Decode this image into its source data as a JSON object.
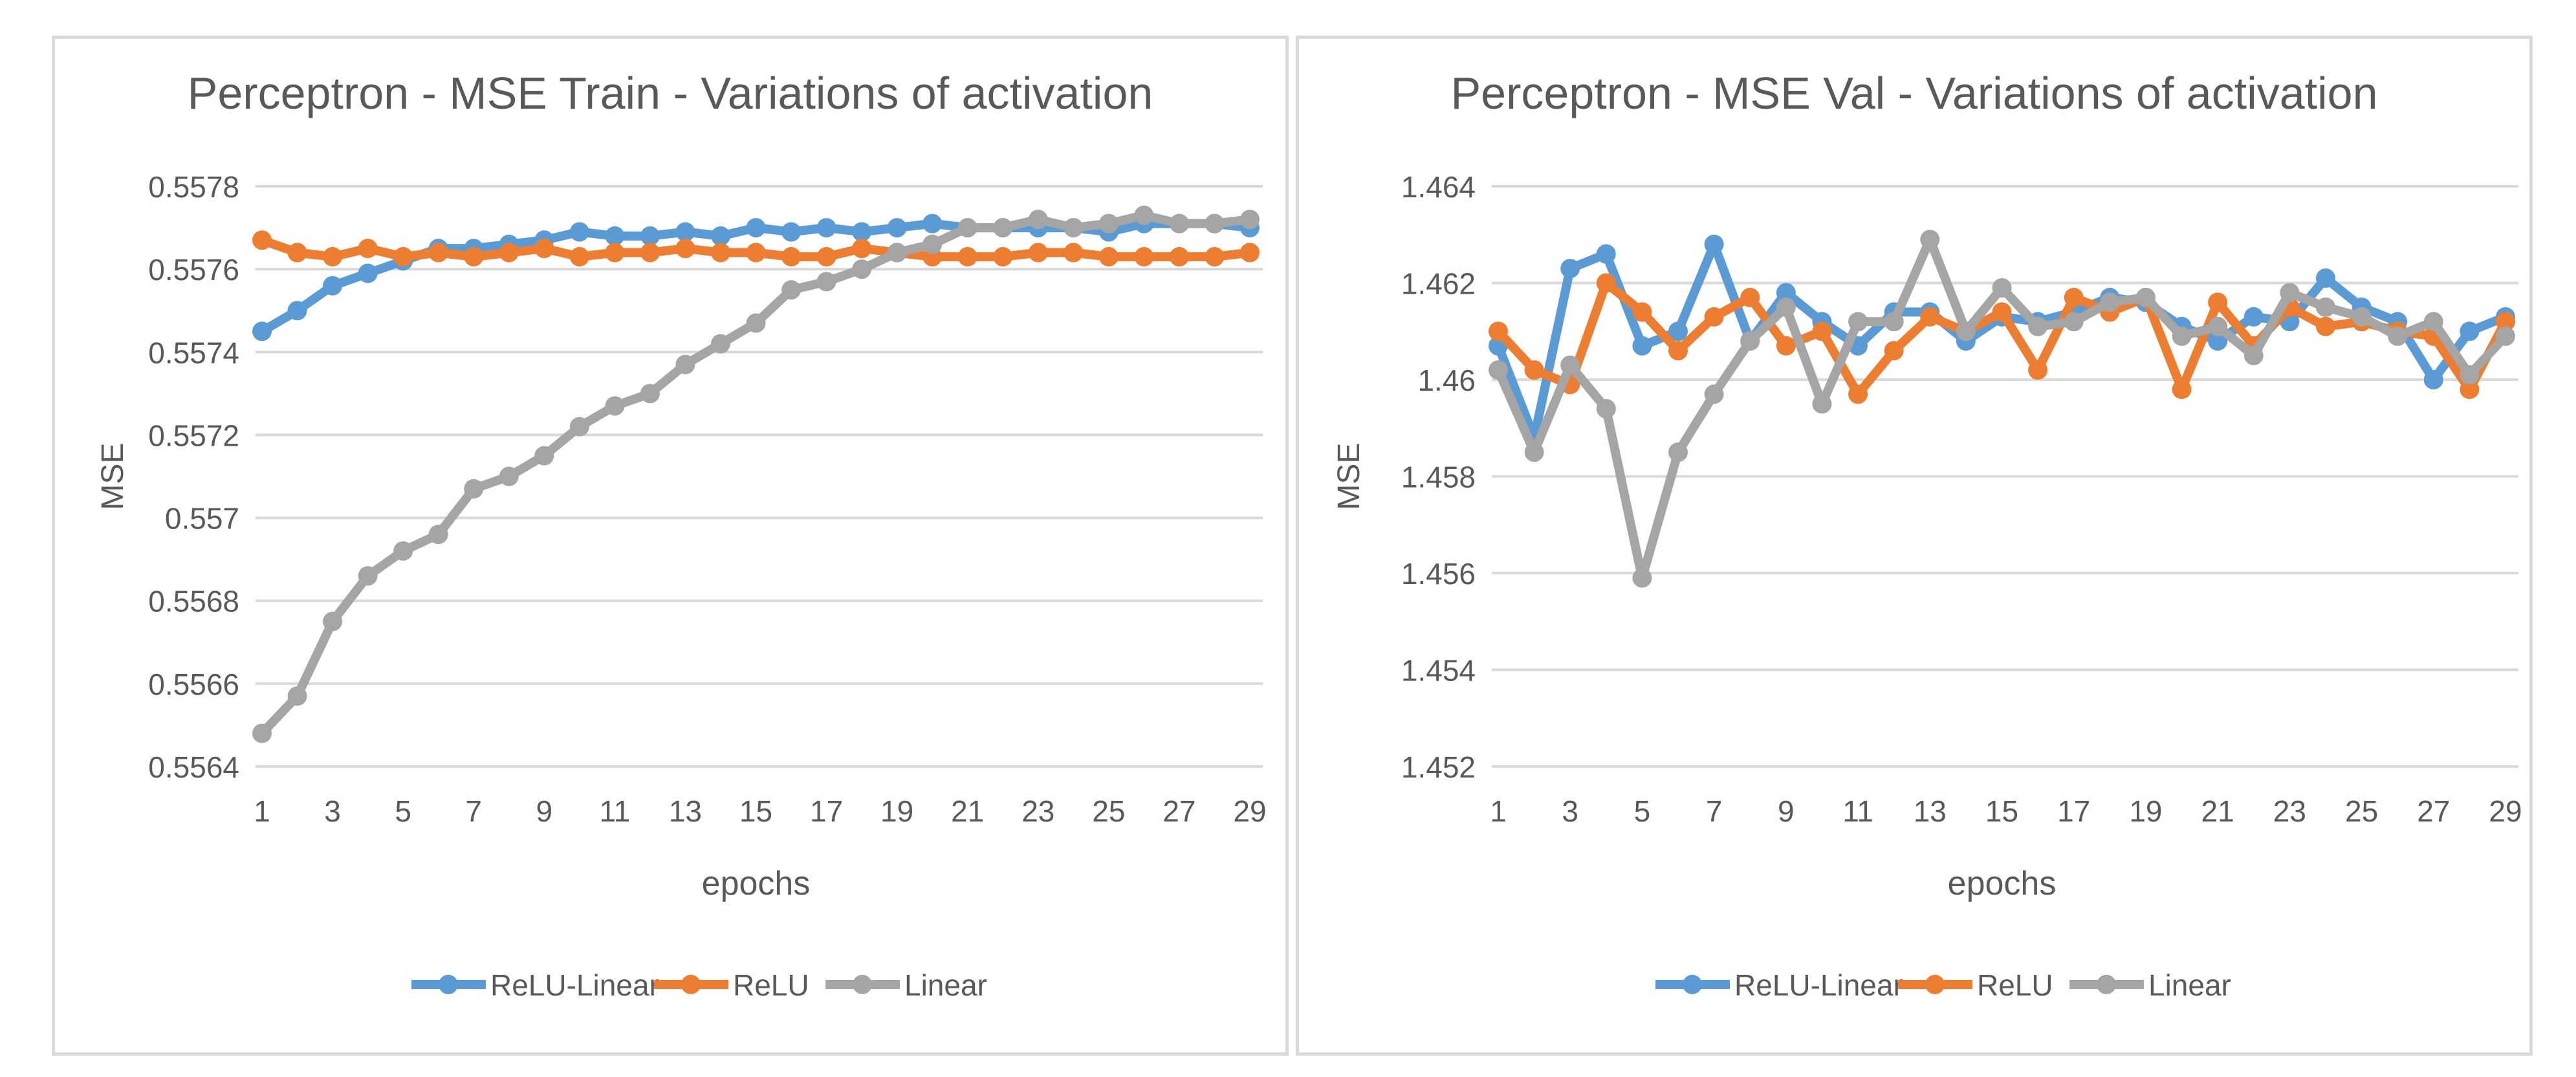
{
  "chart_data": [
    {
      "type": "line",
      "title": "Perceptron - MSE Train - Variations of activation",
      "xlabel": "epochs",
      "ylabel": "MSE",
      "ylim": [
        0.5564,
        0.5578
      ],
      "yticks": [
        "0.5564",
        "0.5566",
        "0.5568",
        "0.557",
        "0.5572",
        "0.5574",
        "0.5576",
        "0.5578"
      ],
      "ytick_values": [
        0.5564,
        0.5566,
        0.5568,
        0.557,
        0.5572,
        0.5574,
        0.5576,
        0.5578
      ],
      "x": [
        1,
        2,
        3,
        4,
        5,
        6,
        7,
        8,
        9,
        10,
        11,
        12,
        13,
        14,
        15,
        16,
        17,
        18,
        19,
        20,
        21,
        22,
        23,
        24,
        25,
        26,
        27,
        28,
        29
      ],
      "xtick_labels": [
        "1",
        "3",
        "5",
        "7",
        "9",
        "11",
        "13",
        "15",
        "17",
        "19",
        "21",
        "23",
        "25",
        "27",
        "29"
      ],
      "legend_position": "bottom",
      "series": [
        {
          "name": "ReLU-Linear",
          "color": "#5b9bd5",
          "values": [
            0.55745,
            0.5575,
            0.55756,
            0.55759,
            0.55762,
            0.55765,
            0.55765,
            0.55766,
            0.55767,
            0.55769,
            0.55768,
            0.55768,
            0.55769,
            0.55768,
            0.5577,
            0.55769,
            0.5577,
            0.55769,
            0.5577,
            0.55771,
            0.5577,
            0.5577,
            0.5577,
            0.5577,
            0.55769,
            0.55771,
            0.55771,
            0.55771,
            0.5577
          ]
        },
        {
          "name": "ReLU",
          "color": "#ed7d31",
          "values": [
            0.55767,
            0.55764,
            0.55763,
            0.55765,
            0.55763,
            0.55764,
            0.55763,
            0.55764,
            0.55765,
            0.55763,
            0.55764,
            0.55764,
            0.55765,
            0.55764,
            0.55764,
            0.55763,
            0.55763,
            0.55765,
            0.55764,
            0.55763,
            0.55763,
            0.55763,
            0.55764,
            0.55764,
            0.55763,
            0.55763,
            0.55763,
            0.55763,
            0.55764
          ]
        },
        {
          "name": "Linear",
          "color": "#a5a5a5",
          "values": [
            0.55648,
            0.55657,
            0.55675,
            0.55686,
            0.55692,
            0.55696,
            0.55707,
            0.5571,
            0.55715,
            0.55722,
            0.55727,
            0.5573,
            0.55737,
            0.55742,
            0.55747,
            0.55755,
            0.55757,
            0.5576,
            0.55764,
            0.55766,
            0.5577,
            0.5577,
            0.55772,
            0.5577,
            0.55771,
            0.55773,
            0.55771,
            0.55771,
            0.55772
          ]
        }
      ]
    },
    {
      "type": "line",
      "title": "Perceptron - MSE Val - Variations of activation",
      "xlabel": "epochs",
      "ylabel": "MSE",
      "ylim": [
        1.452,
        1.464
      ],
      "yticks": [
        "1.452",
        "1.454",
        "1.456",
        "1.458",
        "1.46",
        "1.462",
        "1.464"
      ],
      "ytick_values": [
        1.452,
        1.454,
        1.456,
        1.458,
        1.46,
        1.462,
        1.464
      ],
      "x": [
        1,
        2,
        3,
        4,
        5,
        6,
        7,
        8,
        9,
        10,
        11,
        12,
        13,
        14,
        15,
        16,
        17,
        18,
        19,
        20,
        21,
        22,
        23,
        24,
        25,
        26,
        27,
        28,
        29
      ],
      "xtick_labels": [
        "1",
        "3",
        "5",
        "7",
        "9",
        "11",
        "13",
        "15",
        "17",
        "19",
        "21",
        "23",
        "25",
        "27",
        "29"
      ],
      "legend_position": "bottom",
      "series": [
        {
          "name": "ReLU-Linear",
          "color": "#5b9bd5",
          "values": [
            1.4607,
            1.4588,
            1.4623,
            1.4626,
            1.4607,
            1.461,
            1.4628,
            1.4608,
            1.4618,
            1.4612,
            1.4607,
            1.4614,
            1.4614,
            1.4608,
            1.4613,
            1.4612,
            1.4614,
            1.4617,
            1.4616,
            1.4611,
            1.4608,
            1.4613,
            1.4612,
            1.4621,
            1.4615,
            1.4612,
            1.46,
            1.461,
            1.4613
          ]
        },
        {
          "name": "ReLU",
          "color": "#ed7d31",
          "values": [
            1.461,
            1.4602,
            1.4599,
            1.462,
            1.4614,
            1.4606,
            1.4613,
            1.4617,
            1.4607,
            1.461,
            1.4597,
            1.4606,
            1.4613,
            1.461,
            1.4614,
            1.4602,
            1.4617,
            1.4614,
            1.4617,
            1.4598,
            1.4616,
            1.4607,
            1.4615,
            1.4611,
            1.4612,
            1.461,
            1.4609,
            1.4598,
            1.4612
          ]
        },
        {
          "name": "Linear",
          "color": "#a5a5a5",
          "values": [
            1.4602,
            1.4585,
            1.4603,
            1.4594,
            1.4559,
            1.4585,
            1.4597,
            1.4608,
            1.4615,
            1.4595,
            1.4612,
            1.4612,
            1.4629,
            1.461,
            1.4619,
            1.4611,
            1.4612,
            1.4616,
            1.4617,
            1.4609,
            1.4611,
            1.4605,
            1.4618,
            1.4615,
            1.4613,
            1.4609,
            1.4612,
            1.4601,
            1.4609
          ]
        }
      ]
    }
  ]
}
